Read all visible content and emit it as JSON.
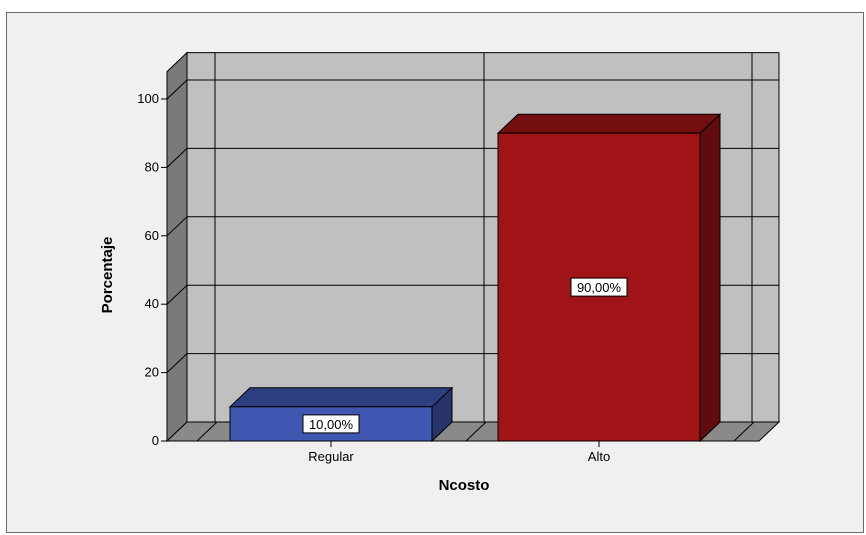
{
  "chart_data": {
    "type": "bar",
    "style": "3d",
    "categories": [
      "Regular",
      "Alto"
    ],
    "values": [
      10,
      90
    ],
    "data_labels": [
      "10,00%",
      "90,00%"
    ],
    "xlabel": "Ncosto",
    "ylabel": "Porcentaje",
    "ylim": [
      0,
      100
    ],
    "yticks": [
      0,
      20,
      40,
      60,
      80,
      100
    ],
    "grid": true,
    "legend": "none",
    "colors": {
      "bars": [
        "#3f57b0",
        "#a01418"
      ],
      "wall": "#c0c0c0",
      "side_wall": "#7a7a7a",
      "floor": "#8a8a8a",
      "background": "#f0f0f0"
    }
  }
}
